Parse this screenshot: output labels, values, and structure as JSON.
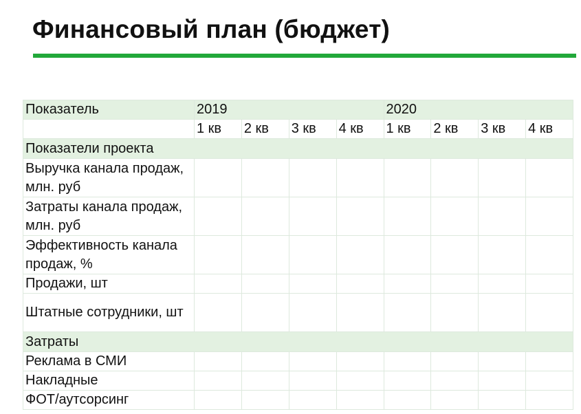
{
  "slide": {
    "title": "Финансовый план (бюджет)",
    "accent_color": "#22a83a",
    "header_fill": "#e3f1e1"
  },
  "table": {
    "indicator_header": "Показатель",
    "years": [
      "2019",
      "2020"
    ],
    "quarters": [
      "1 кв",
      "2 кв",
      "3 кв",
      "4 кв",
      "1 кв",
      "2 кв",
      "3 кв",
      "4 кв"
    ],
    "sections": [
      {
        "title": "Показатели проекта",
        "rows": [
          {
            "label": "Выручка канала продаж, млн. руб"
          },
          {
            "label": "Затраты канала продаж, млн. руб"
          },
          {
            "label": "Эффективность канала продаж, %"
          },
          {
            "label": "Продажи, шт"
          },
          {
            "label": "Штатные сотрудники, шт"
          }
        ]
      },
      {
        "title": "Затраты",
        "rows": [
          {
            "label": "Реклама в СМИ"
          },
          {
            "label": "Накладные"
          },
          {
            "label": "ФОТ/аутсорсинг"
          }
        ]
      }
    ]
  }
}
